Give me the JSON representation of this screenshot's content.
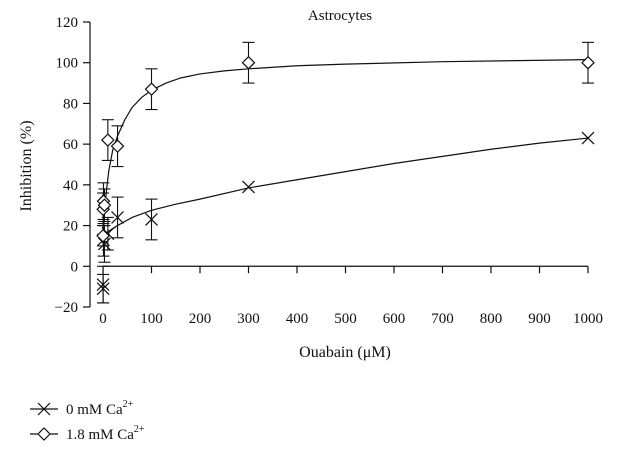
{
  "chart_data": {
    "type": "scatter",
    "title": "Astrocytes",
    "xlabel": "Ouabain (μM)",
    "ylabel": "Inhibition (%)",
    "xlim": [
      0,
      1000
    ],
    "ylim": [
      -20,
      120
    ],
    "xticks": [
      0,
      100,
      200,
      300,
      400,
      500,
      600,
      700,
      800,
      900,
      1000
    ],
    "yticks": [
      -20,
      0,
      20,
      40,
      60,
      80,
      100,
      120
    ],
    "xtick_labels": [
      "0",
      "100",
      "200",
      "300",
      "400",
      "500",
      "600",
      "700",
      "800",
      "900",
      "1000"
    ],
    "ytick_labels": [
      "−20",
      "0",
      "20",
      "40",
      "60",
      "80",
      "100",
      "120"
    ],
    "grid": false,
    "legend_position": "bottom-left",
    "series": [
      {
        "name_base": "0 mM Ca",
        "name_sup": "2+",
        "marker": "x",
        "points": [
          {
            "x": 0.1,
            "y": -9,
            "err": 9
          },
          {
            "x": 0.3,
            "y": -11,
            "err": 7
          },
          {
            "x": 1,
            "y": 13,
            "err": 8
          },
          {
            "x": 3,
            "y": 11,
            "err": 9
          },
          {
            "x": 10,
            "y": 16,
            "err": 8
          },
          {
            "x": 30,
            "y": 24,
            "err": 10
          },
          {
            "x": 100,
            "y": 23,
            "err": 10
          },
          {
            "x": 300,
            "y": 39,
            "err": 0
          },
          {
            "x": 1000,
            "y": 63,
            "err": 0
          }
        ],
        "fit": [
          [
            0,
            13
          ],
          [
            10,
            17
          ],
          [
            30,
            20
          ],
          [
            60,
            24
          ],
          [
            100,
            27.5
          ],
          [
            150,
            30.5
          ],
          [
            200,
            33
          ],
          [
            300,
            38.5
          ],
          [
            400,
            42.5
          ],
          [
            500,
            46.5
          ],
          [
            600,
            50.5
          ],
          [
            700,
            54
          ],
          [
            800,
            57.5
          ],
          [
            900,
            60.5
          ],
          [
            1000,
            63
          ]
        ]
      },
      {
        "name_base": "1.8 mM Ca",
        "name_sup": "2+",
        "marker": "diamond",
        "points": [
          {
            "x": 0.1,
            "y": 15,
            "err": 5
          },
          {
            "x": 0.3,
            "y": 28,
            "err": 8
          },
          {
            "x": 1,
            "y": 32,
            "err": 9
          },
          {
            "x": 3,
            "y": 30,
            "err": 8
          },
          {
            "x": 10,
            "y": 62,
            "err": 10
          },
          {
            "x": 30,
            "y": 59,
            "err": 10
          },
          {
            "x": 100,
            "y": 87,
            "err": 10
          },
          {
            "x": 300,
            "y": 100,
            "err": 10
          },
          {
            "x": 1000,
            "y": 100,
            "err": 10
          }
        ],
        "fit": [
          [
            0,
            12
          ],
          [
            3,
            25
          ],
          [
            7,
            37
          ],
          [
            12,
            47
          ],
          [
            20,
            57
          ],
          [
            30,
            64
          ],
          [
            45,
            72
          ],
          [
            60,
            78
          ],
          [
            80,
            83
          ],
          [
            100,
            86.5
          ],
          [
            130,
            90
          ],
          [
            160,
            92.5
          ],
          [
            200,
            94.5
          ],
          [
            250,
            96
          ],
          [
            300,
            97
          ],
          [
            400,
            98.5
          ],
          [
            500,
            99.3
          ],
          [
            700,
            100.5
          ],
          [
            1000,
            101.5
          ]
        ]
      }
    ]
  }
}
